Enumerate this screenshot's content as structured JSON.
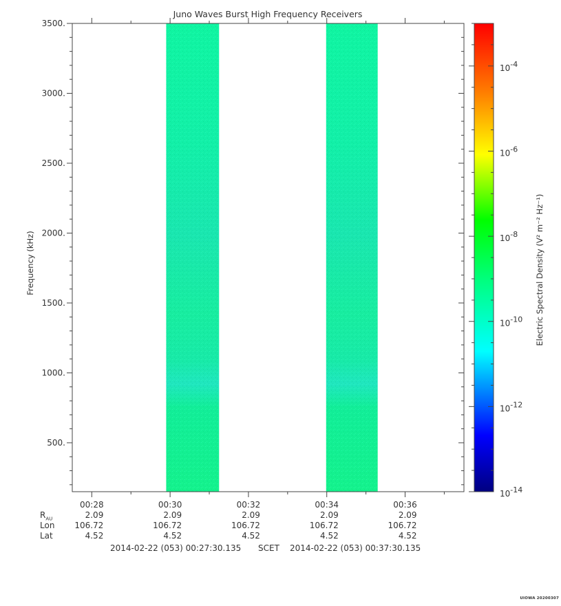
{
  "chart_data": {
    "type": "heatmap",
    "title": "Juno Waves Burst High Frequency Receivers",
    "ylabel": "Frequency (kHz)",
    "ylim": [
      150,
      3500
    ],
    "yticks": [
      500,
      1000,
      1500,
      2000,
      2500,
      3000,
      3500
    ],
    "ytick_labels": [
      "500.",
      "1000.",
      "1500.",
      "2000.",
      "2500.",
      "3000.",
      "3500."
    ],
    "xlim": [
      "00:27:30.135",
      "00:37:30.135"
    ],
    "xticks": [
      "00:28",
      "00:30",
      "00:32",
      "00:34",
      "00:36"
    ],
    "colorbar": {
      "label": "Electric Spectral Density (V² m⁻² Hz⁻¹)",
      "scale": "log",
      "range_exp": [
        -14,
        -3
      ],
      "ticks": [
        {
          "base": "10",
          "exp": "-4",
          "value": -4
        },
        {
          "base": "10",
          "exp": "-6",
          "value": -6
        },
        {
          "base": "10",
          "exp": "-8",
          "value": -8
        },
        {
          "base": "10",
          "exp": "-10",
          "value": -10
        },
        {
          "base": "10",
          "exp": "-12",
          "value": -12
        },
        {
          "base": "10",
          "exp": "-14",
          "value": -14
        }
      ]
    },
    "bursts": [
      {
        "start": "00:29:54",
        "end": "00:31:15",
        "typical_log_density": -9.7
      },
      {
        "start": "00:33:59",
        "end": "00:35:18",
        "typical_log_density": -9.7
      }
    ]
  },
  "ephemeris": {
    "rows": [
      {
        "label": "R",
        "sub": "AU",
        "values": [
          "2.09",
          "2.09",
          "2.09",
          "2.09",
          "2.09"
        ]
      },
      {
        "label": "Lon",
        "sub": "",
        "values": [
          "106.72",
          "106.72",
          "106.72",
          "106.72",
          "106.72"
        ]
      },
      {
        "label": "Lat",
        "sub": "",
        "values": [
          "4.52",
          "4.52",
          "4.52",
          "4.52",
          "4.52"
        ]
      }
    ]
  },
  "footer": {
    "start": "2014-02-22 (053) 00:27:30.135",
    "mid": "SCET",
    "end": "2014-02-22 (053) 00:37:30.135",
    "stamp": "UIOWA 20200307"
  }
}
